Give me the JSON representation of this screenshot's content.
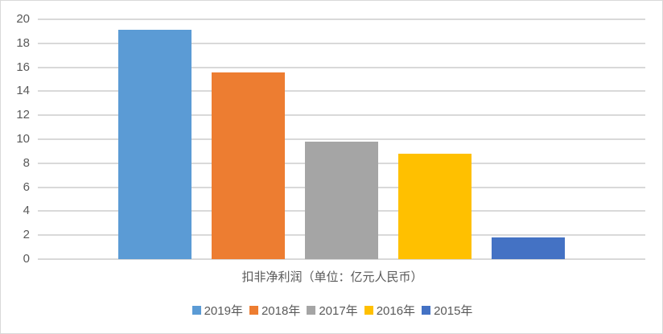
{
  "chart_data": {
    "type": "bar",
    "title": "",
    "xlabel": "扣非净利润（单位：亿元人民币）",
    "ylabel": "",
    "ylim": [
      0,
      20
    ],
    "yticks": [
      0,
      2,
      4,
      6,
      8,
      10,
      12,
      14,
      16,
      18,
      20
    ],
    "grid": true,
    "legend_position": "bottom",
    "categories": [
      "扣非净利润（单位：亿元人民币）"
    ],
    "series": [
      {
        "name": "2019年",
        "values": [
          19.1
        ],
        "color": "#5b9bd5"
      },
      {
        "name": "2018年",
        "values": [
          15.6
        ],
        "color": "#ed7d31"
      },
      {
        "name": "2017年",
        "values": [
          9.8
        ],
        "color": "#a5a5a5"
      },
      {
        "name": "2016年",
        "values": [
          8.8
        ],
        "color": "#ffc000"
      },
      {
        "name": "2015年",
        "values": [
          1.8
        ],
        "color": "#4472c4"
      }
    ]
  },
  "colors": {
    "grid": "#d9d9d9",
    "text": "#595959",
    "border": "#d9d9d9"
  }
}
